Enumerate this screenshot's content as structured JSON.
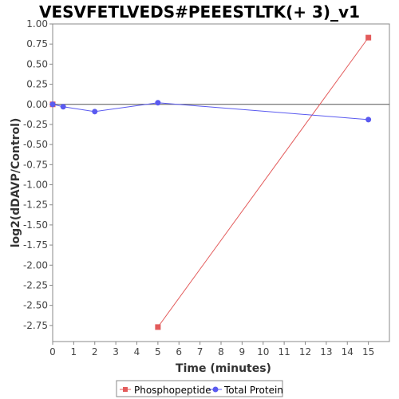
{
  "chart_data": {
    "type": "line",
    "title": "VESVFETLVEDS#PEEESTLTK(+ 3)_v1",
    "xlabel": "Time (minutes)",
    "ylabel": "log2(dDAVP/Control)",
    "xlim": [
      0,
      16
    ],
    "ylim": [
      -2.95,
      1.0
    ],
    "xticks": [
      0,
      1,
      2,
      3,
      4,
      5,
      6,
      7,
      8,
      9,
      10,
      11,
      12,
      13,
      14,
      15
    ],
    "yticks": [
      1.0,
      0.75,
      0.5,
      0.25,
      0.0,
      -0.25,
      -0.5,
      -0.75,
      -1.0,
      -1.25,
      -1.5,
      -1.75,
      -2.0,
      -2.25,
      -2.5,
      -2.75
    ],
    "ytick_labels": [
      "1.00",
      "0.75",
      "0.50",
      "0.25",
      "0.00",
      "-0.25",
      "-0.50",
      "-0.75",
      "-1.00",
      "-1.25",
      "-1.50",
      "-1.75",
      "-2.00",
      "-2.25",
      "-2.50",
      "-2.75"
    ],
    "zero_line": true,
    "grid": false,
    "legend_position": "bottom-center",
    "series": [
      {
        "name": "Phosphopeptide",
        "color": "#e35b5b",
        "marker": "square",
        "segments": [
          [
            {
              "x": 0,
              "y": 0.0
            }
          ],
          [
            {
              "x": 5,
              "y": -2.77
            },
            {
              "x": 15,
              "y": 0.83
            }
          ]
        ]
      },
      {
        "name": "Total Protein",
        "color": "#5a5af0",
        "marker": "circle",
        "segments": [
          [
            {
              "x": 0,
              "y": 0.0
            },
            {
              "x": 0.5,
              "y": -0.03
            },
            {
              "x": 2,
              "y": -0.09
            },
            {
              "x": 5,
              "y": 0.02
            },
            {
              "x": 15,
              "y": -0.19
            }
          ]
        ]
      }
    ]
  }
}
